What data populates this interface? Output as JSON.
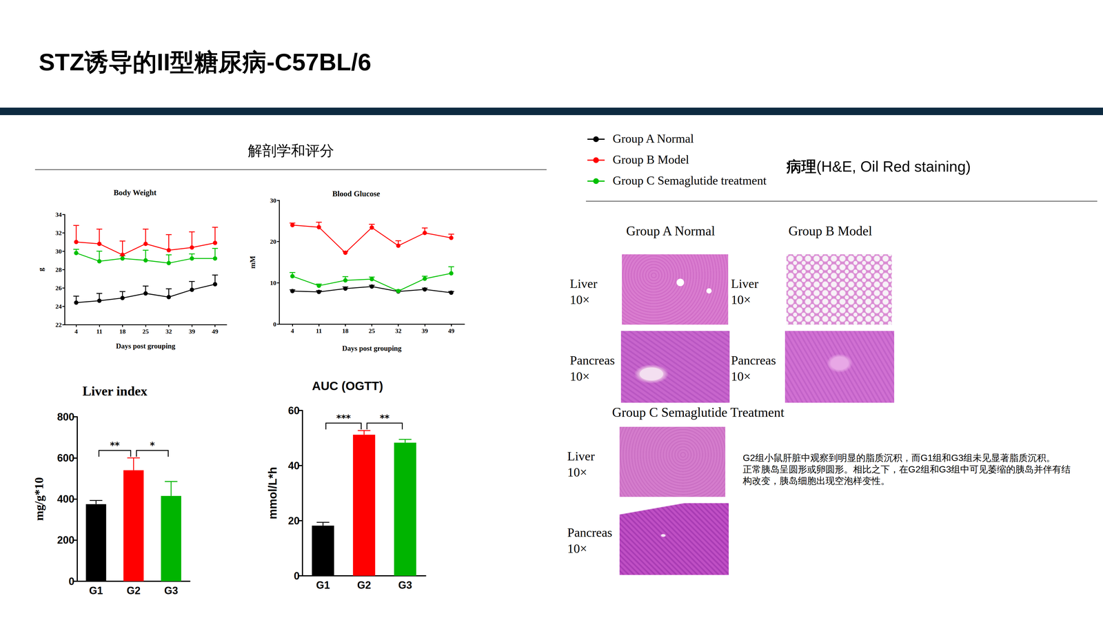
{
  "slide": {
    "title": "STZ诱导的II型糖尿病-C57BL/6",
    "left_heading": "解剖学和评分",
    "right_heading_bold": "病理",
    "right_heading": "(H&E, Oil Red staining)"
  },
  "histology": {
    "groups": [
      {
        "name": "Group A Normal",
        "panels": [
          {
            "tissue": "Liver",
            "magnification": "10×"
          },
          {
            "tissue": "Pancreas",
            "magnification": "10×"
          }
        ]
      },
      {
        "name": "Group B Model",
        "panels": [
          {
            "tissue": "Liver",
            "magnification": "10×"
          },
          {
            "tissue": "Pancreas",
            "magnification": "10×"
          }
        ]
      },
      {
        "name": "Group C Semaglutide Treatment",
        "panels": [
          {
            "tissue": "Liver",
            "magnification": "10×"
          },
          {
            "tissue": "Pancreas",
            "magnification": "10×"
          }
        ]
      }
    ],
    "notes": [
      "G2组小鼠肝脏中观察到明显的脂质沉积，而G1组和G3组未见显著脂质沉积。",
      "正常胰岛呈圆形或卵圆形。相比之下，在G2组和G3组中可见萎缩的胰岛并伴有结构改变，胰岛细胞出现空泡样变性。"
    ]
  },
  "chart_data": [
    {
      "type": "line",
      "title": "Body Weight",
      "x_label": "Days post grouping",
      "y_label": "g",
      "categories": [
        4,
        11,
        18,
        25,
        32,
        39,
        49
      ],
      "ylim": [
        22,
        34
      ],
      "yticks": [
        22,
        24,
        26,
        28,
        30,
        32,
        34
      ],
      "grid": false,
      "series": [
        {
          "name": "Group A Normal",
          "color": "#000000",
          "marker": "circle",
          "values": [
            24.4,
            24.6,
            24.9,
            25.4,
            25.0,
            25.8,
            26.4
          ],
          "errors": [
            0.7,
            0.8,
            0.7,
            0.8,
            0.9,
            0.9,
            1.0
          ]
        },
        {
          "name": "Group B Model",
          "color": "#ff0000",
          "marker": "circle",
          "values": [
            31.0,
            30.8,
            29.6,
            30.8,
            30.1,
            30.4,
            30.9
          ],
          "errors": [
            1.8,
            1.6,
            1.5,
            1.6,
            1.7,
            1.7,
            1.7
          ]
        },
        {
          "name": "Group C Semaglutide treatment",
          "color": "#00c000",
          "marker": "circle",
          "values": [
            29.8,
            28.9,
            29.2,
            29.0,
            28.7,
            29.2,
            29.2
          ],
          "errors": [
            0.4,
            1.1,
            0.3,
            1.1,
            0.9,
            0.5,
            1.1
          ]
        }
      ]
    },
    {
      "type": "line",
      "title": "Blood Glucose",
      "x_label": "Days post grouping",
      "y_label": "mM",
      "categories": [
        4,
        11,
        18,
        25,
        32,
        39,
        49
      ],
      "ylim": [
        0,
        30
      ],
      "yticks": [
        0,
        10,
        20,
        30
      ],
      "grid": false,
      "series": [
        {
          "name": "Group A Normal",
          "color": "#000000",
          "marker": "circle",
          "values": [
            8.0,
            7.8,
            8.6,
            9.1,
            7.9,
            8.4,
            7.6
          ],
          "errors": [
            0.3,
            0.3,
            0.4,
            0.3,
            0.3,
            0.3,
            0.3
          ]
        },
        {
          "name": "Group B Model",
          "color": "#ff0000",
          "marker": "circle",
          "values": [
            24.0,
            23.5,
            17.3,
            23.4,
            19.0,
            22.1,
            20.9
          ],
          "errors": [
            0.5,
            1.2,
            0.3,
            0.8,
            1.2,
            1.2,
            0.9
          ]
        },
        {
          "name": "Group C Semaglutide treatment",
          "color": "#00c000",
          "marker": "circle",
          "values": [
            11.6,
            9.3,
            10.6,
            10.9,
            8.0,
            11.0,
            12.3
          ],
          "errors": [
            0.9,
            0.4,
            0.9,
            0.5,
            0.3,
            0.6,
            1.6
          ]
        }
      ]
    },
    {
      "type": "bar",
      "title": "Liver index",
      "y_label": "mg/g*10",
      "categories": [
        "G1",
        "G2",
        "G3"
      ],
      "values": [
        375,
        540,
        415
      ],
      "errors": [
        18,
        60,
        70
      ],
      "colors": [
        "#000000",
        "#ff0000",
        "#00b400"
      ],
      "ylim": [
        0,
        800
      ],
      "yticks": [
        0,
        200,
        400,
        600,
        800
      ],
      "grid": false,
      "annotations": [
        {
          "from": "G1",
          "to": "G2",
          "label": "**"
        },
        {
          "from": "G2",
          "to": "G3",
          "label": "*"
        }
      ]
    },
    {
      "type": "bar",
      "title": "AUC (OGTT)",
      "y_label": "mmol/L*h",
      "categories": [
        "G1",
        "G2",
        "G3"
      ],
      "values": [
        18.2,
        51.2,
        48.3
      ],
      "errors": [
        1.2,
        1.5,
        1.2
      ],
      "colors": [
        "#000000",
        "#ff0000",
        "#00b400"
      ],
      "ylim": [
        0,
        60
      ],
      "yticks": [
        0,
        20,
        40,
        60
      ],
      "grid": false,
      "annotations": [
        {
          "from": "G1",
          "to": "G2",
          "label": "***"
        },
        {
          "from": "G2",
          "to": "G3",
          "label": "**"
        }
      ]
    }
  ]
}
